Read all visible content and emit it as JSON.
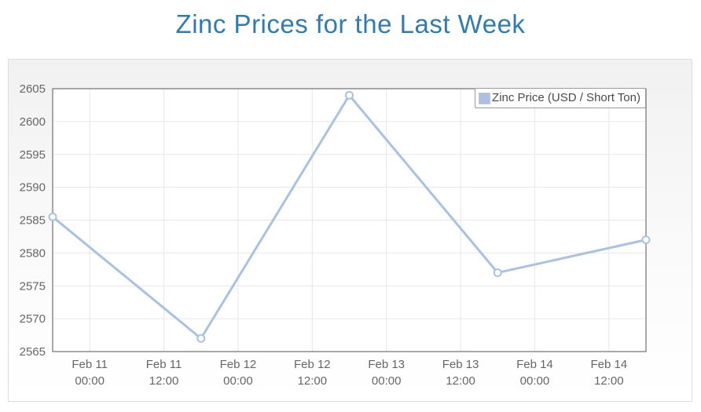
{
  "page": {
    "title": "Zinc Prices for the Last Week"
  },
  "legend": {
    "label": "Zinc Price (USD / Short Ton)"
  },
  "colors": {
    "title": "#2e7cb0",
    "series": "#a9c2e3",
    "marker_fill": "#ffffff",
    "grid": "#e7e7e7",
    "axis_border": "#555555",
    "tick_text": "#666666",
    "legend_border": "#999999",
    "legend_text": "#4a4a4a",
    "plot_bg": "#ffffff",
    "container_border": "#dddddd"
  },
  "chart_data": {
    "type": "line",
    "title": "Zinc Prices for the Last Week",
    "xlabel": "",
    "ylabel": "",
    "grid": true,
    "legend_position": "top-right",
    "marker": "open-circle",
    "x_unit_note": "hours since Feb 10 00:00 (estimated from axis)",
    "xlim_hours": [
      18,
      114
    ],
    "ylim": [
      2565,
      2605
    ],
    "yticks": [
      2565,
      2570,
      2575,
      2580,
      2585,
      2590,
      2595,
      2600,
      2605
    ],
    "xticks": [
      {
        "hour": 24,
        "line1": "Feb 11",
        "line2": "00:00"
      },
      {
        "hour": 36,
        "line1": "Feb 11",
        "line2": "12:00"
      },
      {
        "hour": 48,
        "line1": "Feb 12",
        "line2": "00:00"
      },
      {
        "hour": 60,
        "line1": "Feb 12",
        "line2": "12:00"
      },
      {
        "hour": 72,
        "line1": "Feb 13",
        "line2": "00:00"
      },
      {
        "hour": 84,
        "line1": "Feb 13",
        "line2": "12:00"
      },
      {
        "hour": 96,
        "line1": "Feb 14",
        "line2": "00:00"
      },
      {
        "hour": 108,
        "line1": "Feb 14",
        "line2": "12:00"
      }
    ],
    "series": [
      {
        "name": "Zinc Price (USD / Short Ton)",
        "color": "#a9c2e3",
        "points": [
          {
            "x_hour": 18,
            "time": "Feb 10 18:00",
            "value": 2585.5
          },
          {
            "x_hour": 42,
            "time": "Feb 11 18:00",
            "value": 2567
          },
          {
            "x_hour": 66,
            "time": "Feb 12 18:00",
            "value": 2604
          },
          {
            "x_hour": 90,
            "time": "Feb 13 18:00",
            "value": 2577
          },
          {
            "x_hour": 114,
            "time": "Feb 14 18:00",
            "value": 2582
          }
        ]
      }
    ]
  }
}
